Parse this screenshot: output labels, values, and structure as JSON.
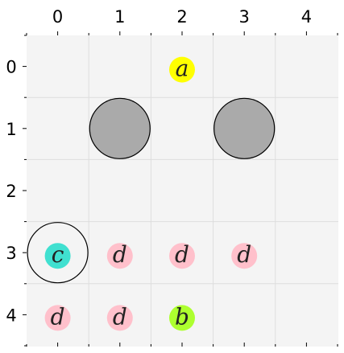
{
  "board": {
    "rows": 5,
    "cols": 5,
    "col_labels": [
      "0",
      "1",
      "2",
      "3",
      "4"
    ],
    "row_labels": [
      "0",
      "1",
      "2",
      "3",
      "4"
    ],
    "background_color": "#f4f4f4",
    "grid_color": "#dddddd"
  },
  "pieces": [
    {
      "name": "gray-disc-1",
      "kind": "large-disc",
      "row": 1,
      "col": 1,
      "fill": "#aaaaaa",
      "stroke": "#000000"
    },
    {
      "name": "gray-disc-2",
      "kind": "large-disc",
      "row": 1,
      "col": 3,
      "fill": "#aaaaaa",
      "stroke": "#000000"
    },
    {
      "name": "outline-ring",
      "kind": "large-ring",
      "row": 3,
      "col": 0,
      "fill": "none",
      "stroke": "#000000"
    }
  ],
  "tokens": [
    {
      "letter": "a",
      "row": 0,
      "col": 2,
      "color": "#ffff00"
    },
    {
      "letter": "c",
      "row": 3,
      "col": 0,
      "color": "#40e0d0"
    },
    {
      "letter": "d",
      "row": 3,
      "col": 1,
      "color": "#ffc0cb"
    },
    {
      "letter": "d",
      "row": 3,
      "col": 2,
      "color": "#ffc0cb"
    },
    {
      "letter": "d",
      "row": 3,
      "col": 3,
      "color": "#ffc0cb"
    },
    {
      "letter": "d",
      "row": 4,
      "col": 0,
      "color": "#ffc0cb"
    },
    {
      "letter": "d",
      "row": 4,
      "col": 1,
      "color": "#ffc0cb"
    },
    {
      "letter": "b",
      "row": 4,
      "col": 2,
      "color": "#adff2f"
    }
  ]
}
